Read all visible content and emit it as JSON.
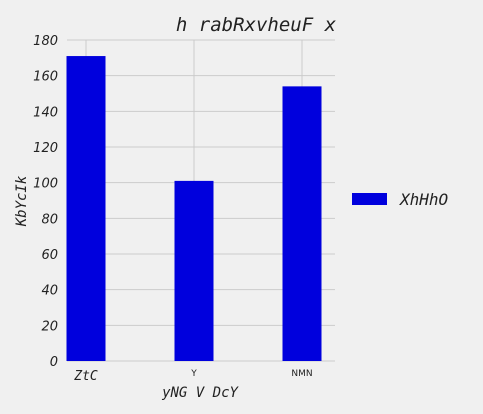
{
  "chart_data": {
    "type": "bar",
    "title": "h rabRxvheuF x",
    "xlabel": "yNG  V DcY",
    "ylabel": "KbYcIk",
    "categories": [
      "ZtC",
      "Y",
      "NMN"
    ],
    "series": [
      {
        "name": "XhHhO",
        "values": [
          171,
          101,
          154
        ],
        "color": "#0000dd"
      }
    ],
    "ylim": [
      0,
      180
    ],
    "yticks": [
      0,
      20,
      40,
      60,
      80,
      100,
      120,
      140,
      160,
      180
    ],
    "grid": true,
    "legend": "right"
  }
}
